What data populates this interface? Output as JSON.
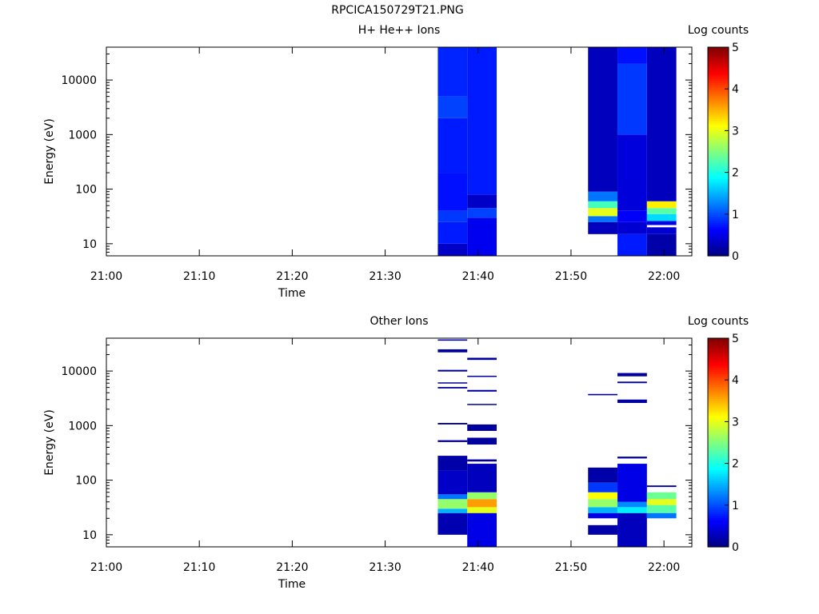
{
  "figure_title": "RPCICA150729T21.PNG",
  "chart_data": [
    {
      "type": "heatmap",
      "title": "H+ He++ Ions",
      "xlabel": "Time",
      "ylabel": "Energy (eV)",
      "y_scale": "log",
      "xlim": [
        "21:00",
        "22:03"
      ],
      "ylim": [
        6,
        40000
      ],
      "x_ticks": [
        "21:00",
        "21:10",
        "21:20",
        "21:30",
        "21:40",
        "21:50",
        "22:00"
      ],
      "y_ticks": [
        "10",
        "100",
        "1000",
        "10000"
      ],
      "colorbar": {
        "label": "Log counts",
        "range": [
          0,
          5
        ],
        "ticks": [
          "0",
          "1",
          "2",
          "3",
          "4",
          "5"
        ]
      },
      "columns": [
        {
          "t_start": "21:35:40",
          "t_end": "21:38:50",
          "bands": [
            {
              "e_low": 6,
              "e_high": 10,
              "value": 0.35
            },
            {
              "e_low": 10,
              "e_high": 25,
              "value": 0.75
            },
            {
              "e_low": 25,
              "e_high": 40,
              "value": 0.9
            },
            {
              "e_low": 40,
              "e_high": 200,
              "value": 0.7
            },
            {
              "e_low": 200,
              "e_high": 2000,
              "value": 0.75
            },
            {
              "e_low": 2000,
              "e_high": 5000,
              "value": 0.95
            },
            {
              "e_low": 5000,
              "e_high": 40000,
              "value": 0.8
            }
          ]
        },
        {
          "t_start": "21:38:50",
          "t_end": "21:42:00",
          "bands": [
            {
              "e_low": 6,
              "e_high": 30,
              "value": 0.55
            },
            {
              "e_low": 30,
              "e_high": 45,
              "value": 0.95
            },
            {
              "e_low": 45,
              "e_high": 80,
              "value": 0.35
            },
            {
              "e_low": 80,
              "e_high": 40000,
              "value": 0.75
            }
          ]
        },
        {
          "t_start": "21:51:50",
          "t_end": "21:55:00",
          "bands": [
            {
              "e_low": 15,
              "e_high": 25,
              "value": 0.3
            },
            {
              "e_low": 25,
              "e_high": 32,
              "value": 1.2
            },
            {
              "e_low": 32,
              "e_high": 45,
              "value": 3.0
            },
            {
              "e_low": 45,
              "e_high": 60,
              "value": 2.2
            },
            {
              "e_low": 60,
              "e_high": 90,
              "value": 1.2
            },
            {
              "e_low": 90,
              "e_high": 40000,
              "value": 0.3
            }
          ]
        },
        {
          "t_start": "21:55:00",
          "t_end": "21:58:10",
          "bands": [
            {
              "e_low": 6,
              "e_high": 15,
              "value": 0.75
            },
            {
              "e_low": 15,
              "e_high": 25,
              "value": 0.4
            },
            {
              "e_low": 25,
              "e_high": 40,
              "value": 0.6
            },
            {
              "e_low": 40,
              "e_high": 1000,
              "value": 0.45
            },
            {
              "e_low": 1000,
              "e_high": 20000,
              "value": 0.9
            },
            {
              "e_low": 20000,
              "e_high": 40000,
              "value": 0.7
            }
          ]
        },
        {
          "t_start": "21:58:10",
          "t_end": "22:01:20",
          "bands": [
            {
              "e_low": 6,
              "e_high": 15,
              "value": 0.2
            },
            {
              "e_low": 15,
              "e_high": 20,
              "value": 0.4
            },
            {
              "e_low": 22,
              "e_high": 26,
              "value": 0.5
            },
            {
              "e_low": 26,
              "e_high": 35,
              "value": 1.7
            },
            {
              "e_low": 35,
              "e_high": 45,
              "value": 2.3
            },
            {
              "e_low": 45,
              "e_high": 60,
              "value": 3.2
            },
            {
              "e_low": 60,
              "e_high": 40000,
              "value": 0.3
            }
          ]
        }
      ]
    },
    {
      "type": "heatmap",
      "title": "Other Ions",
      "xlabel": "Time",
      "ylabel": "Energy (eV)",
      "y_scale": "log",
      "xlim": [
        "21:00",
        "22:03"
      ],
      "ylim": [
        6,
        40000
      ],
      "x_ticks": [
        "21:00",
        "21:10",
        "21:20",
        "21:30",
        "21:40",
        "21:50",
        "22:00"
      ],
      "y_ticks": [
        "10",
        "100",
        "1000",
        "10000"
      ],
      "colorbar": {
        "label": "Log counts",
        "range": [
          0,
          5
        ],
        "ticks": [
          "0",
          "1",
          "2",
          "3",
          "4",
          "5"
        ]
      },
      "columns": [
        {
          "t_start": "21:35:40",
          "t_end": "21:38:50",
          "bands": [
            {
              "e_low": 10,
              "e_high": 25,
              "value": 0.25
            },
            {
              "e_low": 25,
              "e_high": 30,
              "value": 1.5
            },
            {
              "e_low": 30,
              "e_high": 45,
              "value": 2.6
            },
            {
              "e_low": 45,
              "e_high": 55,
              "value": 1.2
            },
            {
              "e_low": 55,
              "e_high": 150,
              "value": 0.35
            },
            {
              "e_low": 150,
              "e_high": 280,
              "value": 0.2
            },
            {
              "e_low": 500,
              "e_high": 540,
              "value": 0.15
            },
            {
              "e_low": 1050,
              "e_high": 1120,
              "value": 0.15
            },
            {
              "e_low": 4800,
              "e_high": 5100,
              "value": 0.15
            },
            {
              "e_low": 5900,
              "e_high": 6200,
              "value": 0.15
            },
            {
              "e_low": 9800,
              "e_high": 10500,
              "value": 0.15
            },
            {
              "e_low": 22000,
              "e_high": 25000,
              "value": 0.15
            },
            {
              "e_low": 36000,
              "e_high": 38000,
              "value": 0.15
            }
          ]
        },
        {
          "t_start": "21:38:50",
          "t_end": "21:42:00",
          "bands": [
            {
              "e_low": 6,
              "e_high": 25,
              "value": 0.5
            },
            {
              "e_low": 25,
              "e_high": 32,
              "value": 3.0
            },
            {
              "e_low": 32,
              "e_high": 45,
              "value": 3.6
            },
            {
              "e_low": 45,
              "e_high": 60,
              "value": 2.6
            },
            {
              "e_low": 60,
              "e_high": 200,
              "value": 0.3
            },
            {
              "e_low": 220,
              "e_high": 240,
              "value": 0.15
            },
            {
              "e_low": 450,
              "e_high": 600,
              "value": 0.15
            },
            {
              "e_low": 800,
              "e_high": 1050,
              "value": 0.15
            },
            {
              "e_low": 2400,
              "e_high": 2500,
              "value": 0.15
            },
            {
              "e_low": 4200,
              "e_high": 4500,
              "value": 0.15
            },
            {
              "e_low": 7800,
              "e_high": 8200,
              "value": 0.15
            },
            {
              "e_low": 16000,
              "e_high": 17500,
              "value": 0.15
            }
          ]
        },
        {
          "t_start": "21:51:50",
          "t_end": "21:55:00",
          "bands": [
            {
              "e_low": 10,
              "e_high": 15,
              "value": 0.2
            },
            {
              "e_low": 20,
              "e_high": 25,
              "value": 0.5
            },
            {
              "e_low": 25,
              "e_high": 32,
              "value": 1.5
            },
            {
              "e_low": 32,
              "e_high": 45,
              "value": 2.6
            },
            {
              "e_low": 45,
              "e_high": 60,
              "value": 3.1
            },
            {
              "e_low": 60,
              "e_high": 90,
              "value": 0.9
            },
            {
              "e_low": 90,
              "e_high": 170,
              "value": 0.2
            },
            {
              "e_low": 3600,
              "e_high": 3800,
              "value": 0.15
            }
          ]
        },
        {
          "t_start": "21:55:00",
          "t_end": "21:58:10",
          "bands": [
            {
              "e_low": 6,
              "e_high": 25,
              "value": 0.3
            },
            {
              "e_low": 25,
              "e_high": 32,
              "value": 1.8
            },
            {
              "e_low": 32,
              "e_high": 40,
              "value": 1.3
            },
            {
              "e_low": 40,
              "e_high": 200,
              "value": 0.5
            },
            {
              "e_low": 250,
              "e_high": 270,
              "value": 0.15
            },
            {
              "e_low": 2600,
              "e_high": 3000,
              "value": 0.15
            },
            {
              "e_low": 6000,
              "e_high": 6400,
              "value": 0.15
            },
            {
              "e_low": 8000,
              "e_high": 9200,
              "value": 0.15
            }
          ]
        },
        {
          "t_start": "21:58:10",
          "t_end": "22:01:20",
          "bands": [
            {
              "e_low": 20,
              "e_high": 25,
              "value": 1.2
            },
            {
              "e_low": 25,
              "e_high": 35,
              "value": 2.3
            },
            {
              "e_low": 35,
              "e_high": 45,
              "value": 3.0
            },
            {
              "e_low": 45,
              "e_high": 60,
              "value": 2.4
            },
            {
              "e_low": 75,
              "e_high": 80,
              "value": 0.15
            }
          ]
        }
      ]
    }
  ]
}
